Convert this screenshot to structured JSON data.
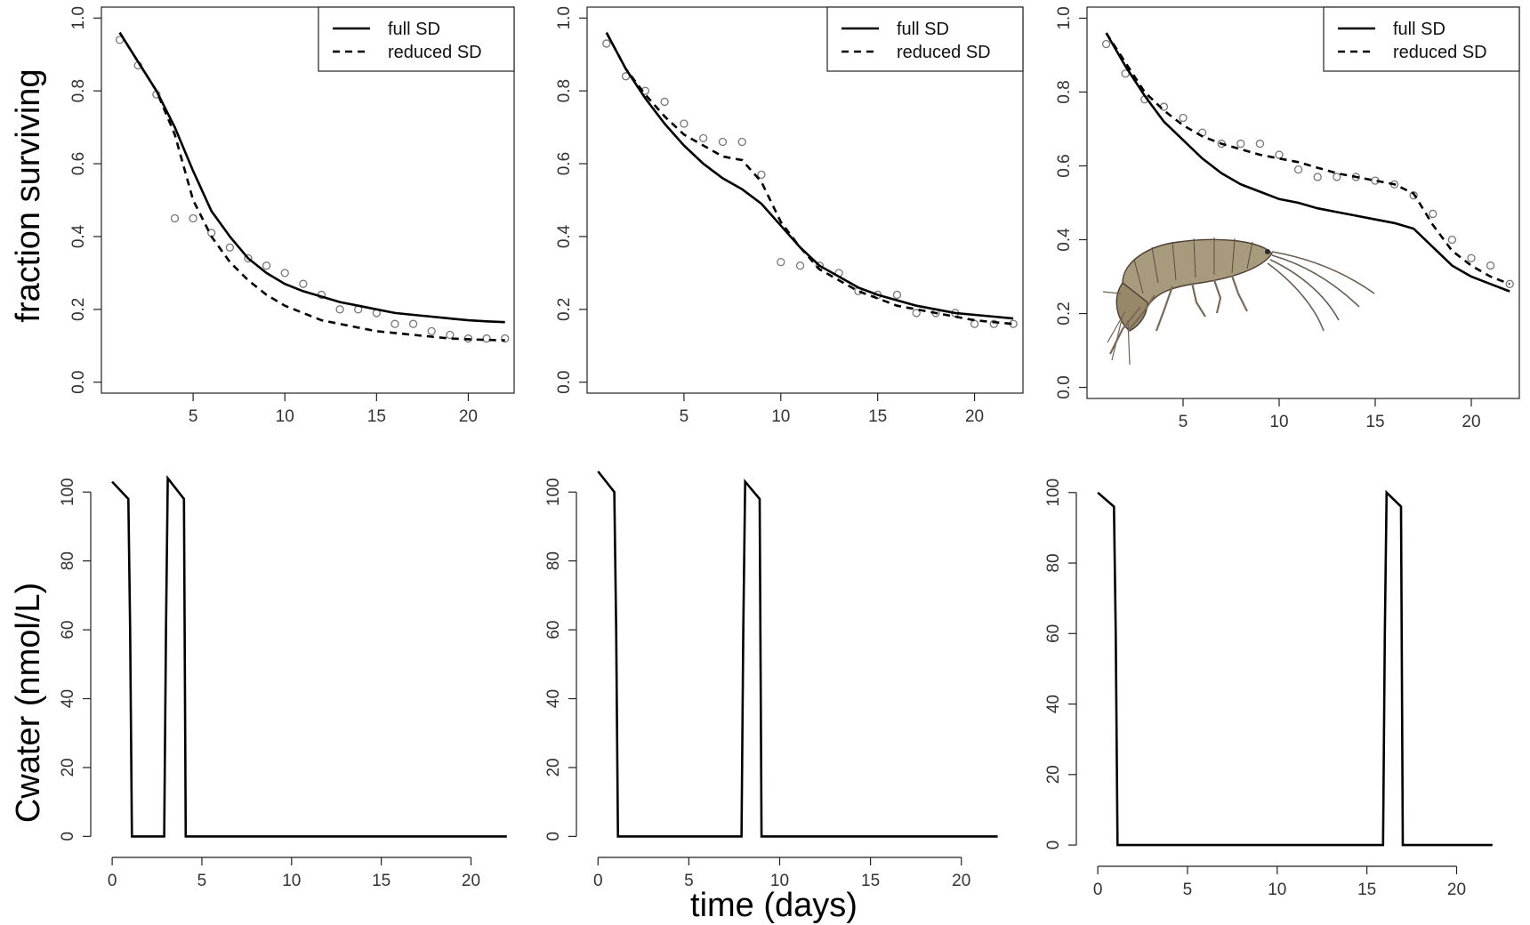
{
  "figure": {
    "ylabel_top": "fraction surviving",
    "ylabel_bottom": "Cwater (nmol/L)",
    "xlabel": "time (days)"
  },
  "colors": {
    "line": "#000000",
    "points": "#777777",
    "background": "#ffffff"
  },
  "chart_data": [
    {
      "type": "line",
      "panel": "survival-1",
      "legend": [
        "full SD",
        "reduced SD"
      ],
      "legend_position": "top-right",
      "xlim": [
        0,
        22.5
      ],
      "ylim": [
        -0.03,
        1.03
      ],
      "xticks": [
        5,
        10,
        15,
        20
      ],
      "yticks": [
        0.0,
        0.2,
        0.4,
        0.6,
        0.8,
        1.0
      ],
      "observed": {
        "x": [
          1,
          2,
          3,
          4,
          5,
          6,
          7,
          8,
          9,
          10,
          11,
          12,
          13,
          14,
          15,
          16,
          17,
          18,
          19,
          20,
          21,
          22
        ],
        "y": [
          0.94,
          0.87,
          0.79,
          0.45,
          0.45,
          0.41,
          0.37,
          0.34,
          0.32,
          0.3,
          0.27,
          0.24,
          0.2,
          0.2,
          0.19,
          0.16,
          0.16,
          0.14,
          0.13,
          0.12,
          0.12,
          0.12
        ]
      },
      "series": [
        {
          "name": "full SD",
          "style": "solid",
          "x": [
            1,
            2,
            3,
            4,
            5,
            6,
            7,
            8,
            9,
            10,
            11,
            12,
            13,
            14,
            15,
            16,
            17,
            18,
            19,
            20,
            21,
            22
          ],
          "y": [
            0.96,
            0.88,
            0.8,
            0.7,
            0.58,
            0.47,
            0.4,
            0.34,
            0.3,
            0.27,
            0.25,
            0.235,
            0.22,
            0.21,
            0.2,
            0.19,
            0.185,
            0.18,
            0.175,
            0.17,
            0.167,
            0.165
          ]
        },
        {
          "name": "reduced SD",
          "style": "dashed",
          "x": [
            1,
            2,
            3,
            4,
            5,
            6,
            7,
            8,
            9,
            10,
            11,
            12,
            13,
            14,
            15,
            16,
            17,
            18,
            19,
            20,
            21,
            22
          ],
          "y": [
            0.96,
            0.88,
            0.8,
            0.68,
            0.5,
            0.4,
            0.33,
            0.28,
            0.24,
            0.21,
            0.19,
            0.17,
            0.16,
            0.15,
            0.14,
            0.135,
            0.13,
            0.125,
            0.12,
            0.118,
            0.116,
            0.115
          ]
        }
      ]
    },
    {
      "type": "line",
      "panel": "survival-2",
      "legend": [
        "full SD",
        "reduced SD"
      ],
      "legend_position": "top-right",
      "xlim": [
        0,
        22.5
      ],
      "ylim": [
        -0.03,
        1.03
      ],
      "xticks": [
        5,
        10,
        15,
        20
      ],
      "yticks": [
        0.0,
        0.2,
        0.4,
        0.6,
        0.8,
        1.0
      ],
      "observed": {
        "x": [
          1,
          2,
          3,
          4,
          5,
          6,
          7,
          8,
          9,
          10,
          11,
          12,
          13,
          14,
          15,
          16,
          17,
          18,
          19,
          20,
          21,
          22
        ],
        "y": [
          0.93,
          0.84,
          0.8,
          0.77,
          0.71,
          0.67,
          0.66,
          0.66,
          0.57,
          0.33,
          0.32,
          0.32,
          0.3,
          0.25,
          0.24,
          0.24,
          0.19,
          0.19,
          0.19,
          0.16,
          0.16,
          0.16
        ]
      },
      "series": [
        {
          "name": "full SD",
          "style": "solid",
          "x": [
            1,
            2,
            3,
            4,
            5,
            6,
            7,
            8,
            9,
            10,
            11,
            12,
            13,
            14,
            15,
            16,
            17,
            18,
            19,
            20,
            21,
            22
          ],
          "y": [
            0.96,
            0.86,
            0.78,
            0.71,
            0.65,
            0.6,
            0.56,
            0.53,
            0.49,
            0.43,
            0.37,
            0.32,
            0.29,
            0.26,
            0.24,
            0.225,
            0.21,
            0.2,
            0.19,
            0.185,
            0.18,
            0.175
          ]
        },
        {
          "name": "reduced SD",
          "style": "dashed",
          "x": [
            1,
            2,
            3,
            4,
            5,
            6,
            7,
            8,
            9,
            10,
            11,
            12,
            13,
            14,
            15,
            16,
            17,
            18,
            19,
            20,
            21,
            22
          ],
          "y": [
            0.96,
            0.86,
            0.79,
            0.73,
            0.68,
            0.65,
            0.62,
            0.61,
            0.55,
            0.44,
            0.37,
            0.31,
            0.28,
            0.25,
            0.23,
            0.21,
            0.2,
            0.19,
            0.18,
            0.17,
            0.165,
            0.16
          ]
        }
      ]
    },
    {
      "type": "line",
      "panel": "survival-3",
      "legend": [
        "full SD",
        "reduced SD"
      ],
      "legend_position": "top-right",
      "xlim": [
        0,
        22.5
      ],
      "ylim": [
        -0.03,
        1.03
      ],
      "xticks": [
        5,
        10,
        15,
        20
      ],
      "yticks": [
        0.0,
        0.2,
        0.4,
        0.6,
        0.8,
        1.0
      ],
      "observed": {
        "x": [
          1,
          2,
          3,
          4,
          5,
          6,
          7,
          8,
          9,
          10,
          11,
          12,
          13,
          14,
          15,
          16,
          17,
          18,
          19,
          20,
          21,
          22
        ],
        "y": [
          0.93,
          0.85,
          0.78,
          0.76,
          0.73,
          0.69,
          0.66,
          0.66,
          0.66,
          0.63,
          0.59,
          0.57,
          0.57,
          0.57,
          0.56,
          0.55,
          0.52,
          0.47,
          0.4,
          0.35,
          0.33,
          0.28
        ]
      },
      "series": [
        {
          "name": "full SD",
          "style": "solid",
          "x": [
            1,
            2,
            3,
            4,
            5,
            6,
            7,
            8,
            9,
            10,
            11,
            12,
            13,
            14,
            15,
            16,
            17,
            18,
            19,
            20,
            21,
            22
          ],
          "y": [
            0.96,
            0.87,
            0.79,
            0.72,
            0.67,
            0.62,
            0.58,
            0.55,
            0.53,
            0.51,
            0.5,
            0.485,
            0.475,
            0.465,
            0.455,
            0.445,
            0.43,
            0.38,
            0.33,
            0.3,
            0.28,
            0.26
          ]
        },
        {
          "name": "reduced SD",
          "style": "dashed",
          "x": [
            1,
            2,
            3,
            4,
            5,
            6,
            7,
            8,
            9,
            10,
            11,
            12,
            13,
            14,
            15,
            16,
            17,
            18,
            19,
            20,
            21,
            22
          ],
          "y": [
            0.96,
            0.88,
            0.8,
            0.75,
            0.71,
            0.68,
            0.66,
            0.645,
            0.63,
            0.62,
            0.61,
            0.595,
            0.58,
            0.57,
            0.56,
            0.55,
            0.525,
            0.44,
            0.37,
            0.33,
            0.3,
            0.28
          ]
        }
      ]
    },
    {
      "type": "line",
      "panel": "exposure-1",
      "xlim": [
        -0.6,
        23
      ],
      "ylim": [
        -3,
        106
      ],
      "xticks": [
        0,
        5,
        10,
        15,
        20
      ],
      "yticks": [
        0,
        20,
        40,
        60,
        80,
        100
      ],
      "series": [
        {
          "style": "solid",
          "x": [
            0,
            0.9,
            1.0,
            1.1,
            2.9,
            3.0,
            3.1,
            4.0,
            4.1,
            22
          ],
          "y": [
            103,
            98,
            60,
            0,
            0,
            60,
            104,
            98,
            0,
            0
          ]
        }
      ]
    },
    {
      "type": "line",
      "panel": "exposure-2",
      "xlim": [
        -0.6,
        23
      ],
      "ylim": [
        -3,
        106
      ],
      "xticks": [
        0,
        5,
        10,
        15,
        20
      ],
      "yticks": [
        0,
        20,
        40,
        60,
        80,
        100
      ],
      "series": [
        {
          "style": "solid",
          "x": [
            0,
            0.9,
            1.0,
            1.1,
            7.9,
            8.0,
            8.1,
            8.9,
            9.0,
            22
          ],
          "y": [
            106,
            100,
            60,
            0,
            0,
            60,
            103,
            98,
            0,
            0
          ]
        }
      ]
    },
    {
      "type": "line",
      "panel": "exposure-3",
      "xlim": [
        -0.6,
        23
      ],
      "ylim": [
        -3,
        106
      ],
      "xticks": [
        0,
        5,
        10,
        15,
        20
      ],
      "yticks": [
        0,
        20,
        40,
        60,
        80,
        100
      ],
      "series": [
        {
          "style": "solid",
          "x": [
            0,
            0.9,
            1.0,
            1.1,
            15.9,
            16.0,
            16.1,
            16.9,
            17.0,
            22
          ],
          "y": [
            100,
            96,
            60,
            0,
            0,
            60,
            100,
            96,
            0,
            0
          ]
        }
      ]
    }
  ]
}
